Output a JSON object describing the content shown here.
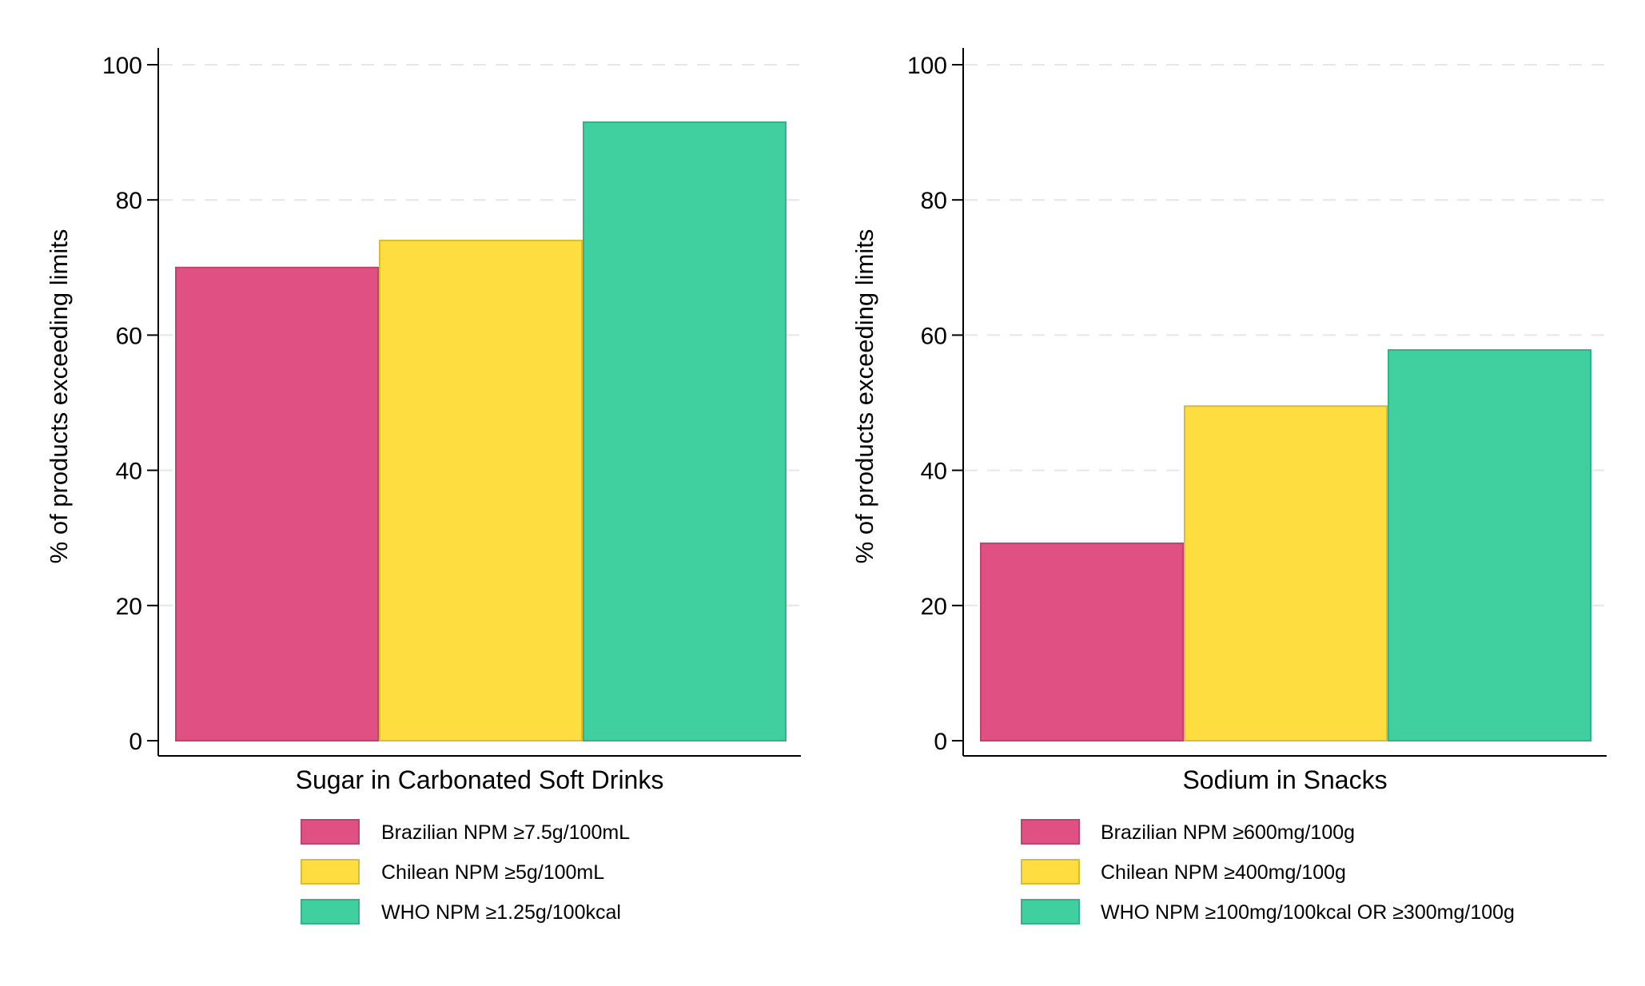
{
  "chart_data": [
    {
      "type": "bar",
      "title": "",
      "xlabel": "Sugar in Carbonated Soft Drinks",
      "ylabel": "% of products exceeding limits",
      "ylim": [
        0,
        100
      ],
      "yticks": [
        0,
        20,
        40,
        60,
        80,
        100
      ],
      "grid": true,
      "legend_position": "bottom",
      "series": [
        {
          "name": "Brazilian NPM  ≥7.5g/100mL",
          "value": 70,
          "color": "#E05082"
        },
        {
          "name": "Chilean NPM  ≥5g/100mL",
          "value": 74,
          "color": "#FEDD40"
        },
        {
          "name": "WHO NPM  ≥1.25g/100kcal",
          "value": 91.5,
          "color": "#40CF9E"
        }
      ]
    },
    {
      "type": "bar",
      "title": "",
      "xlabel": "Sodium in Snacks",
      "ylabel": "% of products exceeding limits",
      "ylim": [
        0,
        100
      ],
      "yticks": [
        0,
        20,
        40,
        60,
        80,
        100
      ],
      "grid": true,
      "legend_position": "bottom",
      "series": [
        {
          "name": "Brazilian NPM  ≥600mg/100g",
          "value": 29.2,
          "color": "#E05082"
        },
        {
          "name": "Chilean NPM  ≥400mg/100g",
          "value": 49.5,
          "color": "#FEDD40"
        },
        {
          "name": "WHO NPM ≥100mg/100kcal OR ≥300mg/100g",
          "value": 57.8,
          "color": "#40CF9E"
        }
      ]
    }
  ]
}
